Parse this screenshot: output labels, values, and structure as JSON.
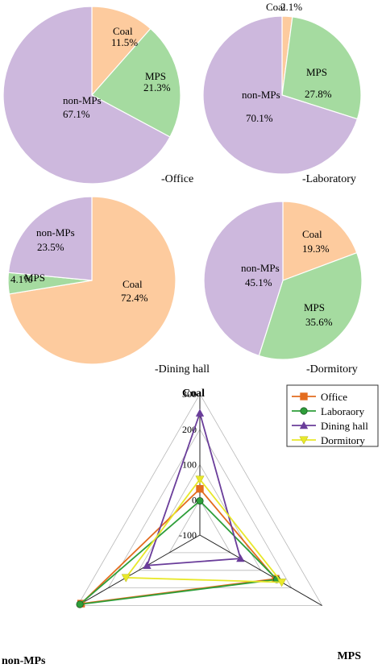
{
  "chart_data": [
    {
      "type": "pie",
      "caption": "-Office",
      "slices": [
        {
          "label": "Coal",
          "pct_label": "11.5%",
          "value": 11.5,
          "color": "#FDCB9E"
        },
        {
          "label": "MPS",
          "pct_label": "21.3%",
          "value": 21.3,
          "color": "#A5DBA0"
        },
        {
          "label": "non-MPs",
          "pct_label": "67.1%",
          "value": 67.1,
          "color": "#CDB8DD"
        }
      ]
    },
    {
      "type": "pie",
      "caption": "-Laboratory",
      "slices": [
        {
          "label": "Coal",
          "pct_label": "2.1%",
          "value": 2.1,
          "color": "#FDCB9E"
        },
        {
          "label": "MPS",
          "pct_label": "27.8%",
          "value": 27.8,
          "color": "#A5DBA0"
        },
        {
          "label": "non-MPs",
          "pct_label": "70.1%",
          "value": 70.1,
          "color": "#CDB8DD"
        }
      ]
    },
    {
      "type": "pie",
      "caption": "-Dining hall",
      "slices": [
        {
          "label": "Coal",
          "pct_label": "72.4%",
          "value": 72.4,
          "color": "#FDCB9E"
        },
        {
          "label": "MPS",
          "pct_label": "4.1%",
          "value": 4.1,
          "color": "#A5DBA0"
        },
        {
          "label": "non-MPs",
          "pct_label": "23.5%",
          "value": 23.5,
          "color": "#CDB8DD"
        }
      ]
    },
    {
      "type": "pie",
      "caption": "-Dormitory",
      "slices": [
        {
          "label": "Coal",
          "pct_label": "19.3%",
          "value": 19.3,
          "color": "#FDCB9E"
        },
        {
          "label": "MPS",
          "pct_label": "35.6%",
          "value": 35.6,
          "color": "#A5DBA0"
        },
        {
          "label": "non-MPs",
          "pct_label": "45.1%",
          "value": 45.1,
          "color": "#CDB8DD"
        }
      ]
    },
    {
      "type": "radar",
      "axes": [
        "Coal",
        "MPS",
        "non-MPs"
      ],
      "range": [
        -100,
        300
      ],
      "ticks": [
        "-100",
        "0",
        "100",
        "200",
        "300"
      ],
      "series": [
        {
          "name": "Office",
          "color": "#E36C1F",
          "marker": "square",
          "values": [
            31,
            148,
            289
          ]
        },
        {
          "name": "Laboraory",
          "color": "#2E9E3A",
          "marker": "circle",
          "values": [
            -3,
            152,
            293
          ]
        },
        {
          "name": "Dining hall",
          "color": "#6A3D9A",
          "marker": "triangle",
          "values": [
            246,
            33,
            73
          ]
        },
        {
          "name": "Dormitory",
          "color": "#E8E82A",
          "marker": "triangle-down",
          "values": [
            58,
            168,
            142
          ]
        }
      ]
    }
  ]
}
